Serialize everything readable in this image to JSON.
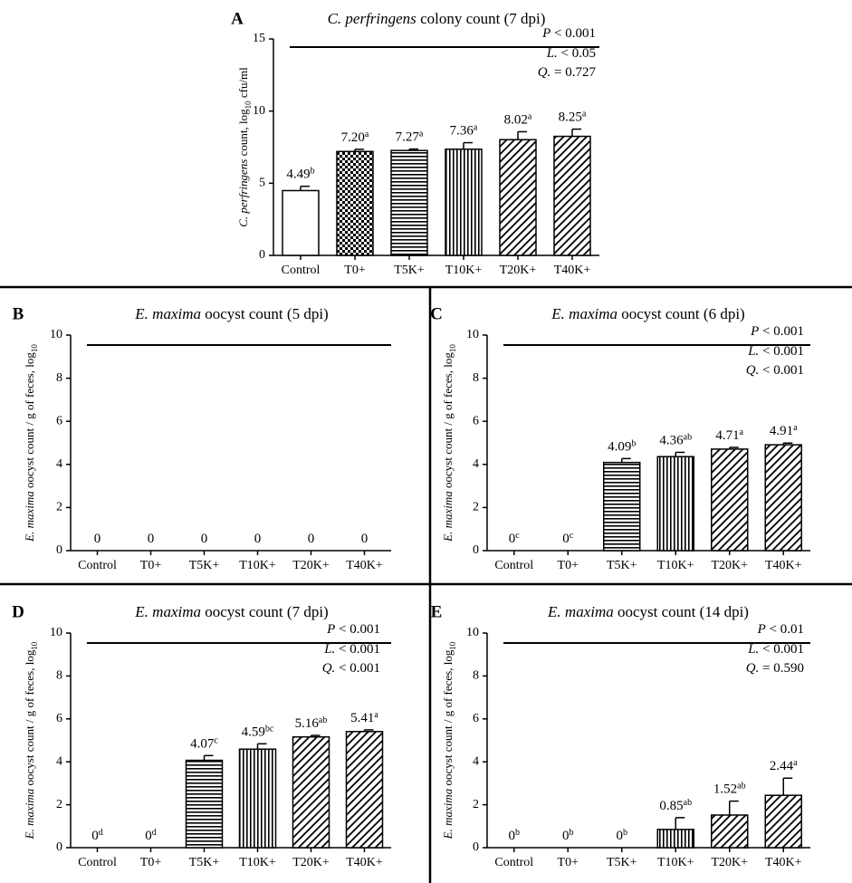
{
  "chart_data": [
    {
      "panel": "A",
      "type": "bar",
      "title_italic": "C. perfringens",
      "title_rest": " colony count (7 dpi)",
      "ylabel_italic": "C. perfringens",
      "ylabel_rest": " count, log",
      "ylabel_sub": "10",
      "ylabel_tail": " cfu/ml",
      "ylim": [
        0,
        15
      ],
      "yticks": [
        0,
        5,
        10,
        15
      ],
      "categories": [
        "Control",
        "T0+",
        "T5K+",
        "T10K+",
        "T20K+",
        "T40K+"
      ],
      "values": [
        4.49,
        7.2,
        7.27,
        7.36,
        8.02,
        8.25
      ],
      "errors": [
        0.3,
        0.15,
        0.1,
        0.45,
        0.55,
        0.5
      ],
      "value_labels": [
        "4.49",
        "7.20",
        "7.27",
        "7.36",
        "8.02",
        "8.25"
      ],
      "superscripts": [
        "b",
        "a",
        "a",
        "a",
        "a",
        "a"
      ],
      "patterns": [
        "none",
        "checker",
        "hlines",
        "vlines",
        "diag",
        "diag"
      ],
      "stats": {
        "p": "< 0.001",
        "l": "< 0.05",
        "q": "= 0.727"
      }
    },
    {
      "panel": "B",
      "type": "bar",
      "title_italic": "E. maxima",
      "title_rest": " oocyst count (5 dpi)",
      "ylabel_italic": "E. maxima",
      "ylabel_rest": " oocyst count / g of feces, log",
      "ylabel_sub": "10",
      "ylabel_tail": "",
      "ylim": [
        0,
        10
      ],
      "yticks": [
        0,
        2,
        4,
        6,
        8,
        10
      ],
      "categories": [
        "Control",
        "T0+",
        "T5K+",
        "T10K+",
        "T20K+",
        "T40K+"
      ],
      "values": [
        0,
        0,
        0,
        0,
        0,
        0
      ],
      "errors": [
        0,
        0,
        0,
        0,
        0,
        0
      ],
      "value_labels": [
        "0",
        "0",
        "0",
        "0",
        "0",
        "0"
      ],
      "superscripts": [
        "",
        "",
        "",
        "",
        "",
        ""
      ],
      "patterns": [
        "none",
        "checker",
        "hlines",
        "vlines",
        "diag",
        "diag"
      ],
      "stats": null
    },
    {
      "panel": "C",
      "type": "bar",
      "title_italic": "E. maxima",
      "title_rest": " oocyst count (6 dpi)",
      "ylabel_italic": "E. maxima",
      "ylabel_rest": " oocyst count / g of feces, log",
      "ylabel_sub": "10",
      "ylabel_tail": "",
      "ylim": [
        0,
        10
      ],
      "yticks": [
        0,
        2,
        4,
        6,
        8,
        10
      ],
      "categories": [
        "Control",
        "T0+",
        "T5K+",
        "T10K+",
        "T20K+",
        "T40K+"
      ],
      "values": [
        0,
        0,
        4.09,
        4.36,
        4.71,
        4.91
      ],
      "errors": [
        0,
        0,
        0.18,
        0.2,
        0.08,
        0.08
      ],
      "value_labels": [
        "0",
        "0",
        "4.09",
        "4.36",
        "4.71",
        "4.91"
      ],
      "superscripts": [
        "c",
        "c",
        "b",
        "ab",
        "a",
        "a"
      ],
      "patterns": [
        "none",
        "checker",
        "hlines",
        "vlines",
        "diag",
        "diag"
      ],
      "stats": {
        "p": "< 0.001",
        "l": "< 0.001",
        "q": "< 0.001"
      }
    },
    {
      "panel": "D",
      "type": "bar",
      "title_italic": "E. maxima",
      "title_rest": " oocyst count (7 dpi)",
      "ylabel_italic": "E. maxima",
      "ylabel_rest": " oocyst count / g of feces, log",
      "ylabel_sub": "10",
      "ylabel_tail": "",
      "ylim": [
        0,
        10
      ],
      "yticks": [
        0,
        2,
        4,
        6,
        8,
        10
      ],
      "categories": [
        "Control",
        "T0+",
        "T5K+",
        "T10K+",
        "T20K+",
        "T40K+"
      ],
      "values": [
        0,
        0,
        4.07,
        4.59,
        5.16,
        5.41
      ],
      "errors": [
        0,
        0,
        0.22,
        0.25,
        0.07,
        0.08
      ],
      "value_labels": [
        "0",
        "0",
        "4.07",
        "4.59",
        "5.16",
        "5.41"
      ],
      "superscripts": [
        "d",
        "d",
        "c",
        "bc",
        "ab",
        "a"
      ],
      "patterns": [
        "none",
        "checker",
        "hlines",
        "vlines",
        "diag",
        "diag"
      ],
      "stats": {
        "p": "< 0.001",
        "l": "< 0.001",
        "q": "< 0.001"
      }
    },
    {
      "panel": "E",
      "type": "bar",
      "title_italic": "E. maxima",
      "title_rest": " oocyst count (14 dpi)",
      "ylabel_italic": "E. maxima",
      "ylabel_rest": " oocyst count / g of feces, log",
      "ylabel_sub": "10",
      "ylabel_tail": "",
      "ylim": [
        0,
        10
      ],
      "yticks": [
        0,
        2,
        4,
        6,
        8,
        10
      ],
      "categories": [
        "Control",
        "T0+",
        "T5K+",
        "T10K+",
        "T20K+",
        "T40K+"
      ],
      "values": [
        0,
        0,
        0,
        0.85,
        1.52,
        2.44
      ],
      "errors": [
        0,
        0,
        0,
        0.55,
        0.65,
        0.8
      ],
      "value_labels": [
        "0",
        "0",
        "0",
        "0.85",
        "1.52",
        "2.44"
      ],
      "superscripts": [
        "b",
        "b",
        "b",
        "ab",
        "ab",
        "a"
      ],
      "patterns": [
        "none",
        "checker",
        "hlines",
        "vlines",
        "diag",
        "diag"
      ],
      "stats": {
        "p": "< 0.01",
        "l": "< 0.001",
        "q": "= 0.590"
      }
    }
  ]
}
